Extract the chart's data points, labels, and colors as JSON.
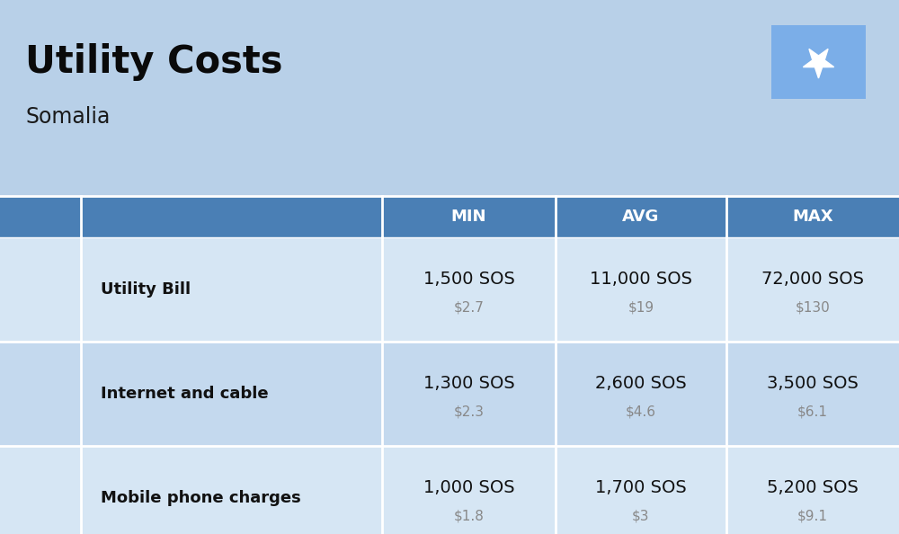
{
  "title": "Utility Costs",
  "subtitle": "Somalia",
  "bg_color": "#b8d0e8",
  "header_bg_color": "#4a7fb5",
  "header_text_color": "#ffffff",
  "row_bg_color_1": "#d6e6f4",
  "row_bg_color_2": "#c4d9ee",
  "divider_color": "#ffffff",
  "header_labels": [
    "MIN",
    "AVG",
    "MAX"
  ],
  "rows": [
    {
      "label": "Utility Bill",
      "min_sos": "1,500 SOS",
      "min_usd": "$2.7",
      "avg_sos": "11,000 SOS",
      "avg_usd": "$19",
      "max_sos": "72,000 SOS",
      "max_usd": "$130"
    },
    {
      "label": "Internet and cable",
      "min_sos": "1,300 SOS",
      "min_usd": "$2.3",
      "avg_sos": "2,600 SOS",
      "avg_usd": "$4.6",
      "max_sos": "3,500 SOS",
      "max_usd": "$6.1"
    },
    {
      "label": "Mobile phone charges",
      "min_sos": "1,000 SOS",
      "min_usd": "$1.8",
      "avg_sos": "1,700 SOS",
      "avg_usd": "$3",
      "max_sos": "5,200 SOS",
      "max_usd": "$9.1"
    }
  ],
  "flag_bg": "#7baee8",
  "flag_star_color": "#ffffff",
  "title_fontsize": 30,
  "subtitle_fontsize": 17,
  "header_fontsize": 13,
  "label_fontsize": 13,
  "sos_fontsize": 14,
  "usd_fontsize": 11
}
